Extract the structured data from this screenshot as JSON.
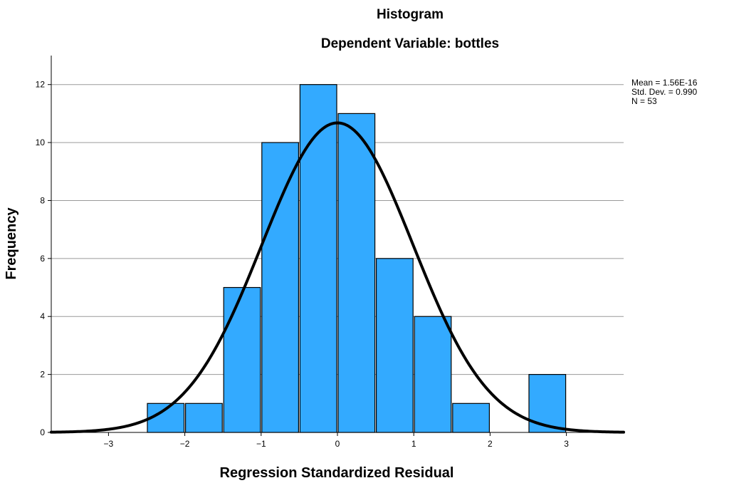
{
  "chart_data": {
    "type": "bar",
    "title": "Histogram",
    "subtitle": "Dependent Variable: bottles",
    "xlabel": "Regression Standardized Residual",
    "ylabel": "Frequency",
    "xlim": [
      -3.75,
      3.75
    ],
    "ylim": [
      0,
      13
    ],
    "x_ticks": [
      -3,
      -2,
      -1,
      0,
      1,
      2,
      3
    ],
    "y_ticks": [
      0,
      2,
      4,
      6,
      8,
      10,
      12
    ],
    "bin_width": 0.5,
    "bins": [
      {
        "start": -2.5,
        "end": -2.0,
        "count": 1
      },
      {
        "start": -2.0,
        "end": -1.5,
        "count": 1
      },
      {
        "start": -1.5,
        "end": -1.0,
        "count": 5
      },
      {
        "start": -1.0,
        "end": -0.5,
        "count": 10
      },
      {
        "start": -0.5,
        "end": 0.0,
        "count": 12
      },
      {
        "start": 0.0,
        "end": 0.5,
        "count": 11
      },
      {
        "start": 0.5,
        "end": 1.0,
        "count": 6
      },
      {
        "start": 1.0,
        "end": 1.5,
        "count": 4
      },
      {
        "start": 1.5,
        "end": 2.0,
        "count": 1
      },
      {
        "start": 2.5,
        "end": 3.0,
        "count": 2
      }
    ],
    "normal_curve": {
      "mean": 1.56e-16,
      "std_dev": 0.99,
      "n": 53
    },
    "stats": {
      "mean": "Mean = 1.56E-16",
      "std_dev": "Std. Dev. = 0.990",
      "n": "N = 53"
    },
    "grid": "horizontal",
    "colors": {
      "bar": "#33aaff",
      "bar_edge": "#000000",
      "curve": "#000000",
      "grid": "#9a9a9a"
    }
  }
}
